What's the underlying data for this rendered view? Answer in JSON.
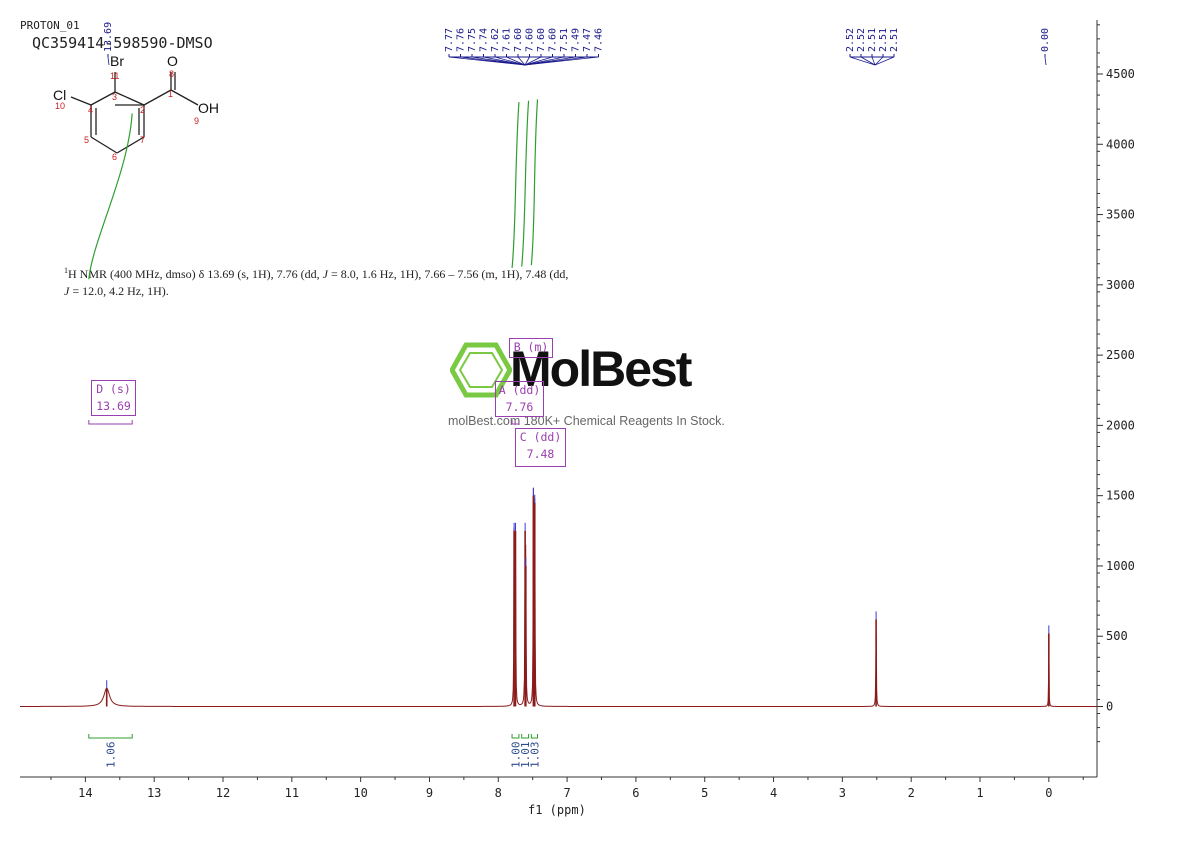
{
  "header": {
    "experiment": "PROTON_01",
    "sample": "QC359414-598590-DMSO"
  },
  "structure": {
    "atoms": {
      "br": "Br",
      "cl": "Cl",
      "o": "O",
      "oh": "OH"
    },
    "numbers": {
      "n1": "1",
      "n2": "2",
      "n3": "3",
      "n4": "4",
      "n5": "5",
      "n6": "6",
      "n7": "7",
      "n8": "8",
      "n9": "9",
      "n10": "10",
      "n11": "11"
    }
  },
  "description": {
    "line1_pre": "H NMR (400 MHz, dmso) δ 13.69 (s, 1H), 7.76 (dd, ",
    "sup": "1",
    "j": "J",
    "line1_mid": " = 8.0, 1.6 Hz, 1H), 7.66 – 7.56 (m, 1H), 7.48 (dd,",
    "line2": " = 12.0, 4.2 Hz, 1H)."
  },
  "watermark": {
    "brand": "MolBest",
    "tagline": "molBest.com 180K+ Chemical Reagents In Stock."
  },
  "multiplets": [
    {
      "label": "D (s)",
      "value": "13.69"
    },
    {
      "label": "B (m)",
      "value": "7.61"
    },
    {
      "label": "A (dd)",
      "value": "7.76"
    },
    {
      "label": "C (dd)",
      "value": "7.48"
    }
  ],
  "colors": {
    "spectrum": "#8b1a1a",
    "integral": "#2e9e2e",
    "peak_label": "#1a1a8c",
    "multiplet": "#9a3fb0",
    "logo_green": "#7ac943",
    "axis": "#333333"
  },
  "chart_data": {
    "type": "line",
    "title": "",
    "xlabel": "f1 (ppm)",
    "ylabel": "",
    "x_reversed": true,
    "xlim": [
      14.95,
      -0.7
    ],
    "ylim": [
      -500,
      4900
    ],
    "x_ticks": [
      "14",
      "13",
      "12",
      "11",
      "10",
      "9",
      "8",
      "7",
      "6",
      "5",
      "4",
      "3",
      "2",
      "1",
      "0"
    ],
    "y_ticks": [
      "0",
      "500",
      "1000",
      "1500",
      "2000",
      "2500",
      "3000",
      "3500",
      "4000",
      "4500"
    ],
    "peak_labels": [
      "13.69",
      "7.77",
      "7.76",
      "7.75",
      "7.74",
      "7.62",
      "7.61",
      "7.60",
      "7.60",
      "7.60",
      "7.60",
      "7.51",
      "7.49",
      "7.47",
      "7.46",
      "2.52",
      "2.52",
      "2.51",
      "2.51",
      "2.51",
      "0.00"
    ],
    "peaks": [
      {
        "ppm": 13.69,
        "height": 130,
        "width": 0.05
      },
      {
        "ppm": 7.77,
        "height": 1250,
        "width": 0.004
      },
      {
        "ppm": 7.75,
        "height": 1250,
        "width": 0.004
      },
      {
        "ppm": 7.61,
        "height": 1250,
        "width": 0.004
      },
      {
        "ppm": 7.6,
        "height": 1000,
        "width": 0.004
      },
      {
        "ppm": 7.49,
        "height": 1500,
        "width": 0.004
      },
      {
        "ppm": 7.47,
        "height": 1450,
        "width": 0.004
      },
      {
        "ppm": 2.51,
        "height": 620,
        "width": 0.004
      },
      {
        "ppm": 0.0,
        "height": 520,
        "width": 0.003
      }
    ],
    "integrals": [
      {
        "from": 13.95,
        "to": 13.32,
        "value": "1.06",
        "curve_top": 4220
      },
      {
        "from": 7.8,
        "to": 7.7,
        "value": "1.00",
        "curve_top": 4300
      },
      {
        "from": 7.66,
        "to": 7.56,
        "value": "1.01",
        "curve_top": 4310
      },
      {
        "from": 7.52,
        "to": 7.43,
        "value": "1.03",
        "curve_top": 4320
      }
    ]
  }
}
